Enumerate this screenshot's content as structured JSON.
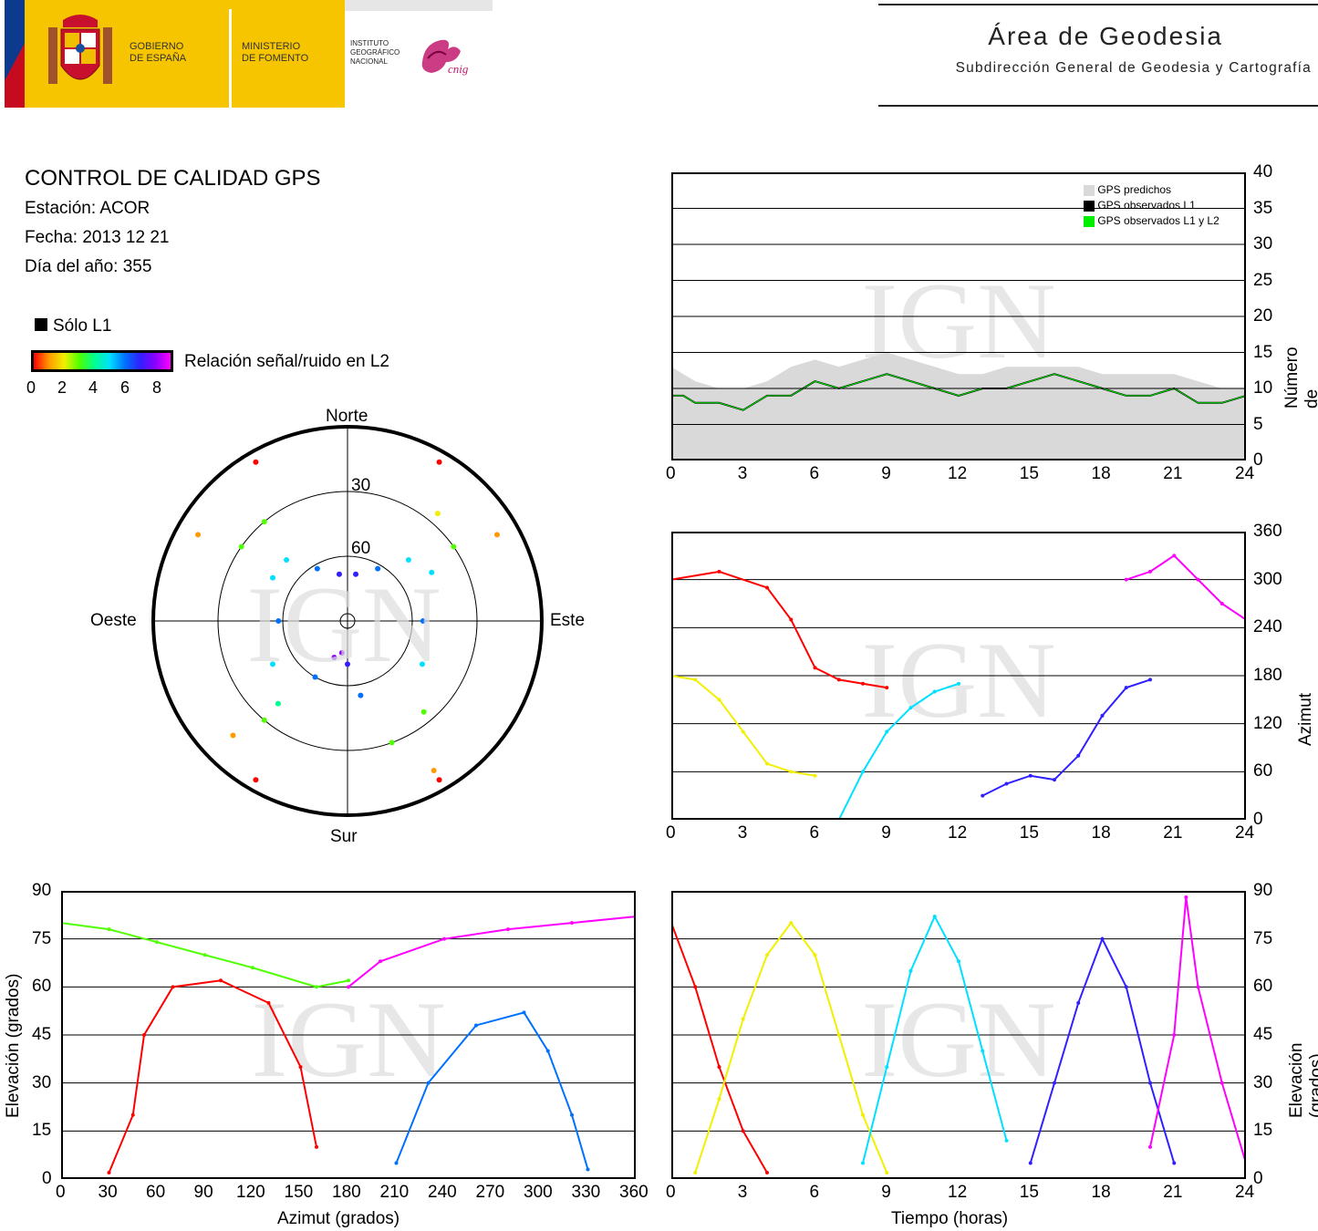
{
  "header": {
    "gov_line1": "GOBIERNO",
    "gov_line2": "DE ESPAÑA",
    "ministry_line1": "MINISTERIO",
    "ministry_line2": "DE FOMENTO",
    "inst_line1": "INSTITUTO",
    "inst_line2": "GEOGRÁFICO",
    "inst_line3": "NACIONAL",
    "cnig_text": "cnig",
    "area_title": "Área de Geodesia",
    "area_subtitle": "Subdirección General de Geodesia y Cartografía"
  },
  "info": {
    "title": "CONTROL DE CALIDAD GPS",
    "station": "Estación: ACOR",
    "date": "Fecha: 2013 12 21",
    "doy": "Día del año: 355"
  },
  "legend": {
    "l1_label": "Sólo L1",
    "snr_label": "Relación señal/ruido en L2",
    "snr_ticks": [
      "0",
      "2",
      "4",
      "6",
      "8"
    ]
  },
  "watermark": "IGN",
  "colors": {
    "l1_only": "#000000",
    "predicted": "#d9d9d9",
    "observed_l1": "#000000",
    "observed_l1_l2": "#00ee00",
    "snr_scale": [
      "#ff0000",
      "#ff9a00",
      "#f0f000",
      "#50ff00",
      "#00ff90",
      "#00e0ff",
      "#0070ff",
      "#3020ff",
      "#8a00ff",
      "#ff00ff"
    ]
  },
  "chart_data": [
    {
      "id": "skyplot",
      "type": "scatter",
      "title": "",
      "directions": {
        "north": "Norte",
        "south": "Sur",
        "east": "Este",
        "west": "Oeste"
      },
      "elevation_rings": [
        "30",
        "60"
      ],
      "series": [
        {
          "values": [
            [
              300,
              10
            ],
            [
              305,
              30
            ],
            [
              315,
              50
            ],
            [
              330,
              62
            ],
            [
              350,
              68
            ],
            [
              10,
              68
            ],
            [
              30,
              62
            ],
            [
              45,
              50
            ],
            [
              55,
              30
            ],
            [
              60,
              10
            ]
          ]
        },
        {
          "values": [
            [
              150,
              5
            ],
            [
              160,
              30
            ],
            [
              170,
              55
            ],
            [
              180,
              70
            ],
            [
              190,
              75
            ],
            [
              200,
              72
            ],
            [
              210,
              60
            ],
            [
              220,
              40
            ],
            [
              225,
              15
            ]
          ]
        },
        {
          "values": [
            [
              30,
              5
            ],
            [
              40,
              25
            ],
            [
              60,
              45
            ],
            [
              90,
              55
            ],
            [
              120,
              50
            ],
            [
              140,
              35
            ],
            [
              150,
              10
            ]
          ]
        },
        {
          "values": [
            [
              210,
              5
            ],
            [
              220,
              30
            ],
            [
              240,
              50
            ],
            [
              270,
              58
            ],
            [
              300,
              50
            ],
            [
              320,
              30
            ],
            [
              330,
              5
            ]
          ]
        }
      ]
    },
    {
      "id": "satellites",
      "type": "area",
      "xlabel": "",
      "ylabel": "Número de satélites",
      "xlim": [
        0,
        24
      ],
      "ylim": [
        0,
        40
      ],
      "xticks": [
        "0",
        "3",
        "6",
        "9",
        "12",
        "15",
        "18",
        "21",
        "24"
      ],
      "yticks": [
        "0",
        "5",
        "10",
        "15",
        "20",
        "25",
        "30",
        "35",
        "40"
      ],
      "legend_position": "top-right",
      "series": [
        {
          "name": "GPS predichos",
          "x": [
            0,
            0.5,
            1,
            2,
            3,
            4,
            5,
            6,
            7,
            8,
            9,
            10,
            11,
            12,
            13,
            14,
            15,
            16,
            17,
            18,
            19,
            20,
            21,
            22,
            23,
            24
          ],
          "values": [
            13,
            12,
            11,
            10,
            10,
            11,
            13,
            14,
            13,
            14,
            15,
            14,
            13,
            12,
            12,
            13,
            13,
            13,
            13,
            12,
            12,
            12,
            12,
            11,
            10,
            10
          ]
        },
        {
          "name": "GPS observados L1",
          "x": [
            0,
            0.5,
            1,
            2,
            3,
            4,
            5,
            6,
            7,
            8,
            9,
            10,
            11,
            12,
            13,
            14,
            15,
            16,
            17,
            18,
            19,
            20,
            21,
            22,
            23,
            24
          ],
          "values": [
            9,
            9,
            8,
            8,
            7,
            9,
            9,
            11,
            10,
            11,
            12,
            11,
            10,
            9,
            10,
            10,
            11,
            12,
            11,
            10,
            9,
            9,
            10,
            8,
            8,
            9
          ]
        },
        {
          "name": "GPS observados L1 y L2",
          "x": [
            0,
            0.5,
            1,
            2,
            3,
            4,
            5,
            6,
            7,
            8,
            9,
            10,
            11,
            12,
            13,
            14,
            15,
            16,
            17,
            18,
            19,
            20,
            21,
            22,
            23,
            24
          ],
          "values": [
            9,
            9,
            8,
            8,
            7,
            9,
            9,
            11,
            10,
            11,
            12,
            11,
            10,
            9,
            10,
            10,
            11,
            12,
            11,
            10,
            9,
            9,
            10,
            8,
            8,
            9
          ]
        }
      ]
    },
    {
      "id": "azimuth-time",
      "type": "scatter",
      "xlabel": "",
      "ylabel": "Azimut (grados)",
      "xlim": [
        0,
        24
      ],
      "ylim": [
        0,
        360
      ],
      "xticks": [
        "0",
        "3",
        "6",
        "9",
        "12",
        "15",
        "18",
        "21",
        "24"
      ],
      "yticks": [
        "0",
        "60",
        "120",
        "180",
        "240",
        "300",
        "360"
      ],
      "series": [
        {
          "values": [
            [
              0,
              300
            ],
            [
              2,
              310
            ],
            [
              4,
              290
            ],
            [
              5,
              250
            ],
            [
              6,
              190
            ],
            [
              7,
              175
            ],
            [
              8,
              170
            ],
            [
              9,
              165
            ]
          ]
        },
        {
          "values": [
            [
              0,
              180
            ],
            [
              1,
              175
            ],
            [
              2,
              150
            ],
            [
              3,
              110
            ],
            [
              4,
              70
            ],
            [
              5,
              60
            ],
            [
              6,
              55
            ]
          ]
        },
        {
          "values": [
            [
              7,
              0
            ],
            [
              8,
              60
            ],
            [
              9,
              110
            ],
            [
              10,
              140
            ],
            [
              11,
              160
            ],
            [
              12,
              170
            ]
          ]
        },
        {
          "values": [
            [
              13,
              30
            ],
            [
              14,
              45
            ],
            [
              15,
              55
            ],
            [
              16,
              50
            ],
            [
              17,
              80
            ],
            [
              18,
              130
            ],
            [
              19,
              165
            ],
            [
              20,
              175
            ]
          ]
        },
        {
          "values": [
            [
              19,
              300
            ],
            [
              20,
              310
            ],
            [
              21,
              330
            ],
            [
              22,
              300
            ],
            [
              23,
              270
            ],
            [
              24,
              250
            ]
          ]
        }
      ]
    },
    {
      "id": "elevation-azimuth",
      "type": "scatter",
      "xlabel": "Azimut (grados)",
      "ylabel": "Elevación (grados)",
      "xlim": [
        0,
        360
      ],
      "ylim": [
        0,
        90
      ],
      "xticks": [
        "0",
        "30",
        "60",
        "90",
        "120",
        "150",
        "180",
        "210",
        "240",
        "270",
        "300",
        "330",
        "360"
      ],
      "yticks": [
        "0",
        "15",
        "30",
        "45",
        "60",
        "75",
        "90"
      ],
      "series": [
        {
          "values": [
            [
              30,
              2
            ],
            [
              45,
              20
            ],
            [
              52,
              45
            ],
            [
              70,
              60
            ],
            [
              100,
              62
            ],
            [
              130,
              55
            ],
            [
              150,
              35
            ],
            [
              160,
              10
            ]
          ]
        },
        {
          "values": [
            [
              0,
              80
            ],
            [
              30,
              78
            ],
            [
              60,
              74
            ],
            [
              90,
              70
            ],
            [
              120,
              66
            ],
            [
              160,
              60
            ],
            [
              180,
              62
            ]
          ]
        },
        {
          "values": [
            [
              210,
              5
            ],
            [
              230,
              30
            ],
            [
              260,
              48
            ],
            [
              290,
              52
            ],
            [
              305,
              40
            ],
            [
              320,
              20
            ],
            [
              330,
              3
            ]
          ]
        },
        {
          "values": [
            [
              180,
              60
            ],
            [
              200,
              68
            ],
            [
              240,
              75
            ],
            [
              280,
              78
            ],
            [
              320,
              80
            ],
            [
              360,
              82
            ]
          ]
        }
      ]
    },
    {
      "id": "elevation-time",
      "type": "scatter",
      "xlabel": "Tiempo (horas)",
      "ylabel": "Elevación (grados)",
      "xlim": [
        0,
        24
      ],
      "ylim": [
        0,
        90
      ],
      "xticks": [
        "0",
        "3",
        "6",
        "9",
        "12",
        "15",
        "18",
        "21",
        "24"
      ],
      "yticks": [
        "0",
        "15",
        "30",
        "45",
        "60",
        "75",
        "90"
      ],
      "series": [
        {
          "values": [
            [
              0,
              80
            ],
            [
              1,
              60
            ],
            [
              2,
              35
            ],
            [
              3,
              15
            ],
            [
              4,
              2
            ]
          ]
        },
        {
          "values": [
            [
              1,
              2
            ],
            [
              2,
              25
            ],
            [
              3,
              50
            ],
            [
              4,
              70
            ],
            [
              5,
              80
            ],
            [
              6,
              70
            ],
            [
              7,
              45
            ],
            [
              8,
              20
            ],
            [
              9,
              2
            ]
          ]
        },
        {
          "values": [
            [
              8,
              5
            ],
            [
              9,
              35
            ],
            [
              10,
              65
            ],
            [
              11,
              82
            ],
            [
              12,
              68
            ],
            [
              13,
              40
            ],
            [
              14,
              12
            ]
          ]
        },
        {
          "values": [
            [
              15,
              5
            ],
            [
              16,
              30
            ],
            [
              17,
              55
            ],
            [
              18,
              75
            ],
            [
              19,
              60
            ],
            [
              20,
              30
            ],
            [
              21,
              5
            ]
          ]
        },
        {
          "values": [
            [
              20,
              10
            ],
            [
              21,
              45
            ],
            [
              21.5,
              88
            ],
            [
              22,
              60
            ],
            [
              23,
              30
            ],
            [
              24,
              5
            ]
          ]
        }
      ]
    }
  ]
}
